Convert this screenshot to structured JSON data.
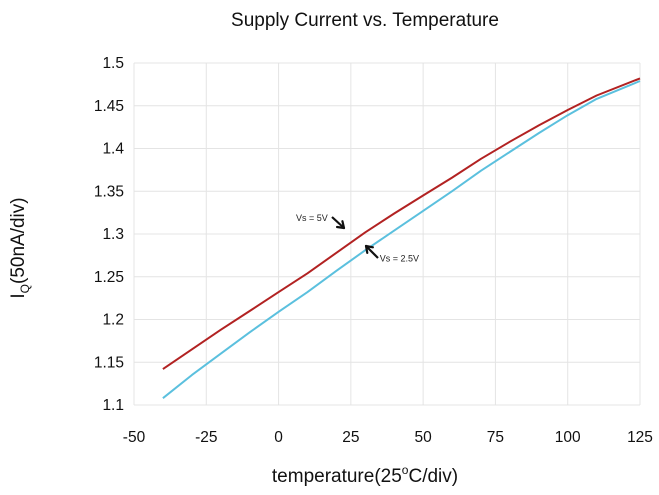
{
  "chart_data": {
    "type": "line",
    "title": "Supply Current vs. Temperature",
    "xlabel": {
      "prefix": "temperature(25",
      "sup": "o",
      "suffix": "C/div)"
    },
    "ylabel": {
      "prefix": "I",
      "sub": "Q",
      "suffix": "(50nA/div)"
    },
    "xlim": [
      -50,
      125
    ],
    "ylim": [
      1.1,
      1.5
    ],
    "xticks": [
      "-50",
      "-25",
      "0",
      "25",
      "50",
      "75",
      "100",
      "125"
    ],
    "yticks": [
      "1.5",
      "1.45",
      "1.4",
      "1.35",
      "1.3",
      "1.25",
      "1.2",
      "1.15",
      "1.1"
    ],
    "grid": true,
    "series": [
      {
        "color": "#b22222",
        "x": [
          -40,
          -30,
          -20,
          -10,
          0,
          10,
          20,
          30,
          40,
          50,
          60,
          70,
          80,
          90,
          100,
          110,
          125
        ],
        "y": [
          1.142,
          1.165,
          1.188,
          1.21,
          1.232,
          1.254,
          1.278,
          1.302,
          1.324,
          1.345,
          1.366,
          1.388,
          1.408,
          1.427,
          1.445,
          1.462,
          1.482
        ]
      },
      {
        "color": "#5bc0de",
        "x": [
          -40,
          -30,
          -20,
          -10,
          0,
          10,
          20,
          30,
          40,
          50,
          60,
          70,
          80,
          90,
          100,
          110,
          125
        ],
        "y": [
          1.108,
          1.135,
          1.16,
          1.185,
          1.209,
          1.232,
          1.257,
          1.281,
          1.304,
          1.327,
          1.35,
          1.374,
          1.396,
          1.418,
          1.439,
          1.458,
          1.479
        ]
      }
    ],
    "annotations": [
      {
        "text": "Vs = 5V",
        "x": 17,
        "y": 1.315
      },
      {
        "text": "Vs = 2.5V",
        "x": 35,
        "y": 1.268
      }
    ]
  }
}
